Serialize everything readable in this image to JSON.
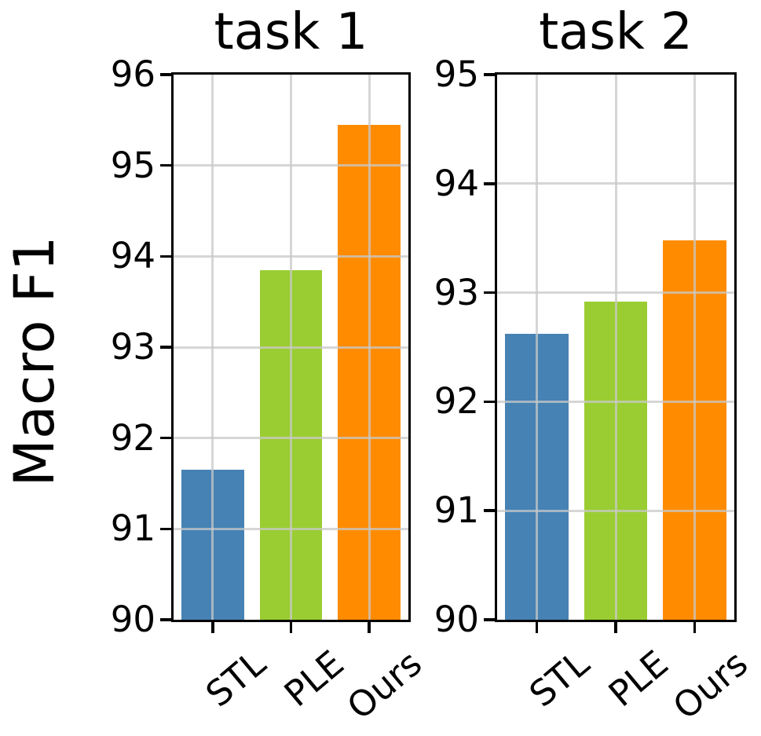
{
  "figure": {
    "ylabel": "Macro F1"
  },
  "chart_data": [
    {
      "type": "bar",
      "title": "task 1",
      "categories": [
        "STL",
        "PLE",
        "Ours"
      ],
      "values": [
        91.65,
        93.85,
        95.45
      ],
      "ylim": [
        90,
        96
      ],
      "yticks": [
        90,
        91,
        92,
        93,
        94,
        95,
        96
      ],
      "xlabel": "",
      "ylabel": "Macro F1",
      "grid": true,
      "legend": null,
      "bar_colors": [
        "#4682B4",
        "#9ACD32",
        "#FF8C00"
      ]
    },
    {
      "type": "bar",
      "title": "task 2",
      "categories": [
        "STL",
        "PLE",
        "Ours"
      ],
      "values": [
        92.62,
        92.92,
        93.48
      ],
      "ylim": [
        90,
        95
      ],
      "yticks": [
        90,
        91,
        92,
        93,
        94,
        95
      ],
      "xlabel": "",
      "ylabel": "",
      "grid": true,
      "legend": null,
      "bar_colors": [
        "#4682B4",
        "#9ACD32",
        "#FF8C00"
      ]
    }
  ],
  "colors": {
    "bar_blue": "#4682B4",
    "bar_green": "#9ACD32",
    "bar_orange": "#FF8C00",
    "grid": "#C8C8C8",
    "axis": "#000000",
    "background": "#FFFFFF"
  }
}
